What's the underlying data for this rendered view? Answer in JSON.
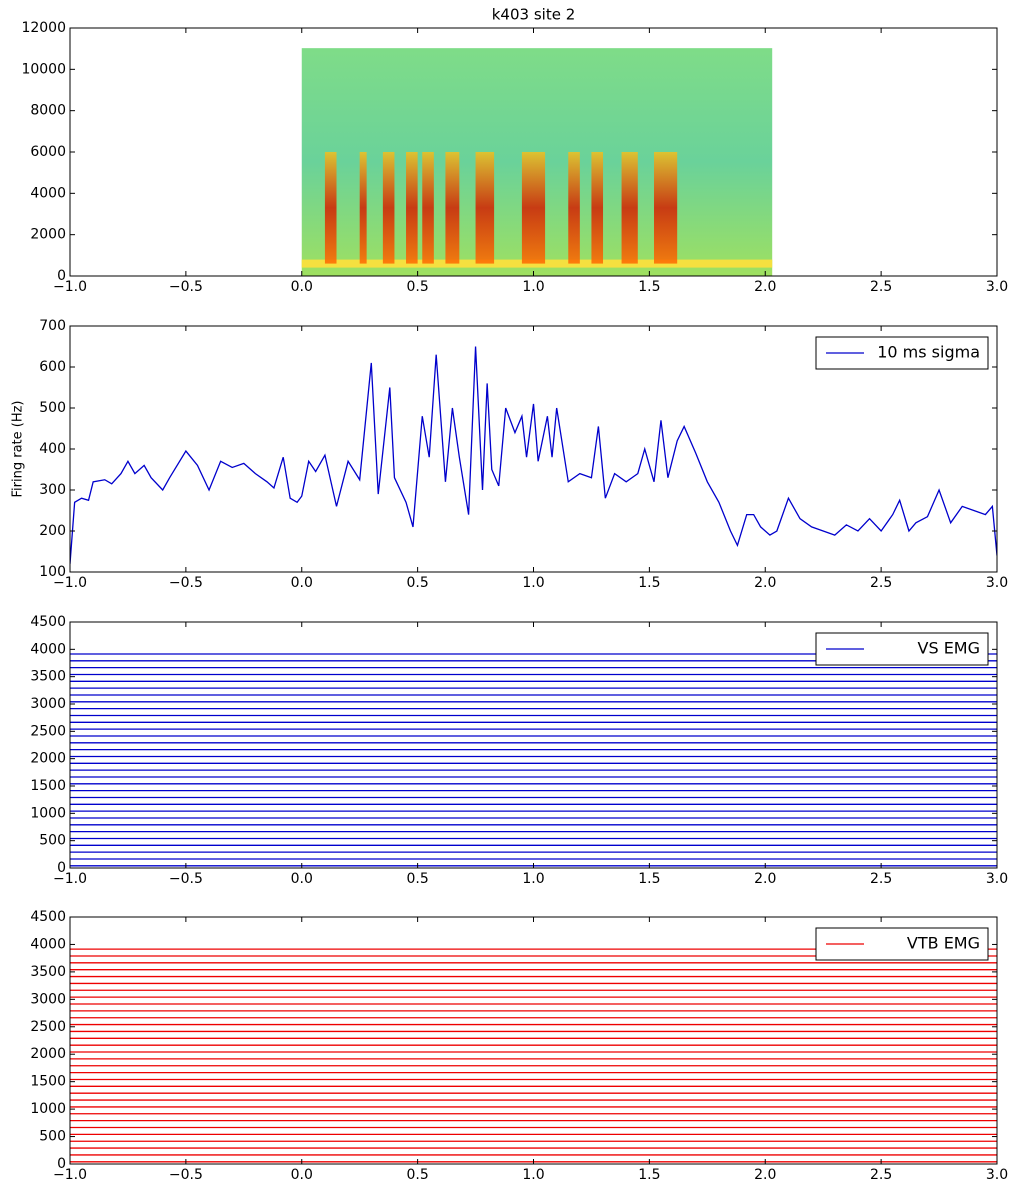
{
  "chart_data": [
    {
      "type": "spectrogram",
      "title": "k403 site 2",
      "xlim": [
        -1,
        3
      ],
      "ylim": [
        0,
        12000
      ],
      "xticks": [
        {
          "value": -1,
          "label": "−1.0"
        },
        {
          "value": -0.5,
          "label": "−0.5"
        },
        {
          "value": 0,
          "label": "0.0"
        },
        0.5,
        {
          "value": 1,
          "label": "1.0"
        },
        1.5,
        {
          "value": 2,
          "label": "2.0"
        },
        2.5,
        {
          "value": 3,
          "label": "3.0"
        }
      ],
      "yticks": [
        0,
        2000,
        4000,
        6000,
        8000,
        10000,
        12000
      ],
      "extent": {
        "x": [
          0,
          2.03
        ],
        "y": [
          0,
          11025
        ]
      },
      "syllable_freq": [
        600,
        6000
      ],
      "syllables": [
        [
          0.1,
          0.15
        ],
        [
          0.25,
          0.28
        ],
        [
          0.35,
          0.4
        ],
        [
          0.45,
          0.5
        ],
        [
          0.52,
          0.57
        ],
        [
          0.62,
          0.68
        ],
        [
          0.75,
          0.83
        ],
        [
          0.95,
          1.05
        ],
        [
          1.15,
          1.2
        ],
        [
          1.25,
          1.3
        ],
        [
          1.38,
          1.45
        ],
        [
          1.52,
          1.62
        ]
      ]
    },
    {
      "type": "line",
      "ylabel": "Firing rate (Hz)",
      "legend": "upper right",
      "xlim": [
        -1,
        3
      ],
      "ylim": [
        100,
        700
      ],
      "xticks": [
        {
          "value": -1,
          "label": "−1.0"
        },
        {
          "value": -0.5,
          "label": "−0.5"
        },
        {
          "value": 0,
          "label": "0.0"
        },
        0.5,
        {
          "value": 1,
          "label": "1.0"
        },
        1.5,
        {
          "value": 2,
          "label": "2.0"
        },
        2.5,
        {
          "value": 3,
          "label": "3.0"
        }
      ],
      "yticks": [
        100,
        200,
        300,
        400,
        500,
        600,
        700
      ],
      "x": [
        -1.0,
        -0.98,
        -0.95,
        -0.92,
        -0.9,
        -0.85,
        -0.82,
        -0.78,
        -0.75,
        -0.72,
        -0.68,
        -0.65,
        -0.6,
        -0.57,
        -0.5,
        -0.45,
        -0.4,
        -0.35,
        -0.3,
        -0.25,
        -0.2,
        -0.15,
        -0.12,
        -0.08,
        -0.05,
        -0.02,
        0.0,
        0.03,
        0.06,
        0.1,
        0.15,
        0.2,
        0.25,
        0.3,
        0.33,
        0.38,
        0.4,
        0.45,
        0.48,
        0.52,
        0.55,
        0.58,
        0.62,
        0.65,
        0.68,
        0.72,
        0.75,
        0.78,
        0.8,
        0.82,
        0.85,
        0.88,
        0.92,
        0.95,
        0.97,
        1.0,
        1.02,
        1.06,
        1.08,
        1.1,
        1.15,
        1.2,
        1.25,
        1.28,
        1.31,
        1.35,
        1.4,
        1.45,
        1.48,
        1.52,
        1.55,
        1.58,
        1.62,
        1.65,
        1.7,
        1.75,
        1.8,
        1.85,
        1.88,
        1.92,
        1.95,
        1.98,
        2.02,
        2.05,
        2.1,
        2.15,
        2.2,
        2.25,
        2.3,
        2.35,
        2.4,
        2.45,
        2.5,
        2.55,
        2.58,
        2.62,
        2.65,
        2.7,
        2.75,
        2.8,
        2.85,
        2.9,
        2.95,
        2.98,
        3.0
      ],
      "series": [
        {
          "name": "10 ms sigma",
          "color": "#0000cc",
          "values": [
            120,
            270,
            280,
            275,
            320,
            325,
            315,
            340,
            370,
            340,
            360,
            330,
            300,
            330,
            395,
            360,
            300,
            370,
            355,
            365,
            340,
            320,
            305,
            380,
            280,
            270,
            285,
            370,
            345,
            385,
            260,
            370,
            325,
            610,
            290,
            550,
            330,
            270,
            210,
            480,
            380,
            630,
            320,
            500,
            380,
            240,
            650,
            300,
            560,
            350,
            310,
            500,
            440,
            480,
            380,
            510,
            370,
            480,
            380,
            500,
            320,
            340,
            330,
            455,
            280,
            340,
            320,
            340,
            400,
            320,
            470,
            330,
            420,
            455,
            390,
            320,
            270,
            200,
            165,
            240,
            240,
            210,
            190,
            200,
            280,
            230,
            210,
            200,
            190,
            215,
            200,
            230,
            200,
            240,
            275,
            200,
            220,
            235,
            300,
            220,
            260,
            250,
            240,
            260,
            140
          ]
        }
      ]
    },
    {
      "type": "traces",
      "legend": "upper right",
      "xlim": [
        -1,
        3
      ],
      "ylim": [
        0,
        4500
      ],
      "xticks": [
        {
          "value": -1,
          "label": "−1.0"
        },
        {
          "value": -0.5,
          "label": "−0.5"
        },
        {
          "value": 0,
          "label": "0.0"
        },
        0.5,
        {
          "value": 1,
          "label": "1.0"
        },
        1.5,
        {
          "value": 2,
          "label": "2.0"
        },
        2.5,
        {
          "value": 3,
          "label": "3.0"
        }
      ],
      "yticks": [
        0,
        500,
        1000,
        1500,
        2000,
        2500,
        3000,
        3500,
        4000,
        4500
      ],
      "series": [
        {
          "name": "VS EMG",
          "color": "#0000cc",
          "values": [
            40,
            165,
            290,
            415,
            540,
            665,
            790,
            915,
            1040,
            1165,
            1290,
            1415,
            1540,
            1665,
            1790,
            1915,
            2040,
            2165,
            2290,
            2415,
            2540,
            2665,
            2790,
            2915,
            3040,
            3165,
            3290,
            3415,
            3540,
            3665,
            3790,
            3915
          ]
        }
      ]
    },
    {
      "type": "traces",
      "legend": "upper right",
      "xlim": [
        -1,
        3
      ],
      "ylim": [
        0,
        4500
      ],
      "xticks": [
        {
          "value": -1,
          "label": "−1.0"
        },
        {
          "value": -0.5,
          "label": "−0.5"
        },
        {
          "value": 0,
          "label": "0.0"
        },
        0.5,
        {
          "value": 1,
          "label": "1.0"
        },
        1.5,
        {
          "value": 2,
          "label": "2.0"
        },
        2.5,
        {
          "value": 3,
          "label": "3.0"
        }
      ],
      "yticks": [
        0,
        500,
        1000,
        1500,
        2000,
        2500,
        3000,
        3500,
        4000,
        4500
      ],
      "series": [
        {
          "name": "VTB EMG",
          "color": "#ee0000",
          "values": [
            40,
            165,
            290,
            415,
            540,
            665,
            790,
            915,
            1040,
            1165,
            1290,
            1415,
            1540,
            1665,
            1790,
            1915,
            2040,
            2165,
            2290,
            2415,
            2540,
            2665,
            2790,
            2915,
            3040,
            3165,
            3290,
            3415,
            3540,
            3665,
            3790,
            3915
          ]
        }
      ]
    }
  ]
}
